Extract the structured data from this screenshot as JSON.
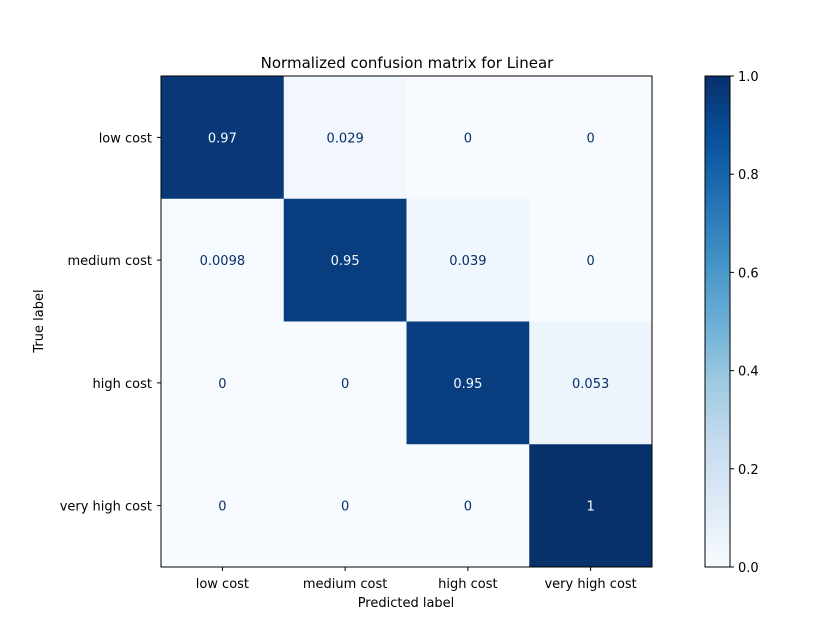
{
  "chart_data": {
    "type": "heatmap",
    "title": "Normalized confusion matrix for Linear",
    "xlabel": "Predicted label",
    "ylabel": "True label",
    "x_categories": [
      "low cost",
      "medium cost",
      "high cost",
      "very high cost"
    ],
    "y_categories": [
      "low cost",
      "medium cost",
      "high cost",
      "very high cost"
    ],
    "values": [
      [
        0.97,
        0.029,
        0,
        0
      ],
      [
        0.0098,
        0.95,
        0.039,
        0
      ],
      [
        0,
        0,
        0.95,
        0.053
      ],
      [
        0,
        0,
        0,
        1
      ]
    ],
    "cell_labels": [
      [
        "0.97",
        "0.029",
        "0",
        "0"
      ],
      [
        "0.0098",
        "0.95",
        "0.039",
        "0"
      ],
      [
        "0",
        "0",
        "0.95",
        "0.053"
      ],
      [
        "0",
        "0",
        "0",
        "1"
      ]
    ],
    "colormap": "Blues",
    "colorbar": {
      "range": [
        0,
        1
      ],
      "ticks": [
        0.0,
        0.2,
        0.4,
        0.6,
        0.8,
        1.0
      ],
      "tick_labels": [
        "0.0",
        "0.2",
        "0.4",
        "0.6",
        "0.8",
        "1.0"
      ]
    },
    "colors": {
      "low": "#f7fbff",
      "high": "#08306b",
      "label_on_light": "#08306b",
      "label_on_dark": "#f7fbff"
    }
  }
}
